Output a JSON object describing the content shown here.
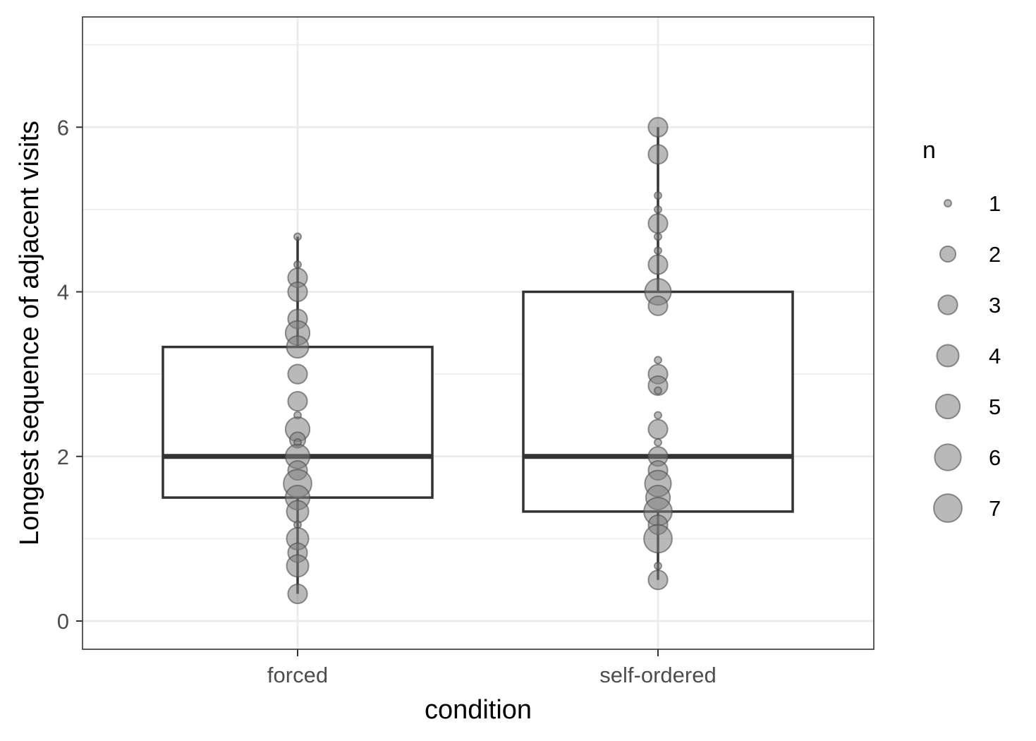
{
  "chart_data": {
    "type": "box",
    "xlabel": "condition",
    "ylabel": "Longest sequence of adjacent visits",
    "categories": [
      "forced",
      "self-ordered"
    ],
    "ylim": [
      -0.33,
      7.33
    ],
    "yticks": [
      0,
      2,
      4,
      6
    ],
    "grid": true,
    "boxes": [
      {
        "name": "forced",
        "q1": 1.5,
        "median": 2.0,
        "q3": 3.33,
        "whisker_low": 0.33,
        "whisker_high": 4.67
      },
      {
        "name": "self-ordered",
        "q1": 1.33,
        "median": 2.0,
        "q3": 4.0,
        "whisker_low": 0.5,
        "whisker_high": 6.0
      }
    ],
    "points": [
      {
        "category": "forced",
        "points": [
          {
            "y": 4.67,
            "n": 1
          },
          {
            "y": 4.33,
            "n": 1
          },
          {
            "y": 4.17,
            "n": 3
          },
          {
            "y": 4.0,
            "n": 3
          },
          {
            "y": 3.67,
            "n": 3
          },
          {
            "y": 3.5,
            "n": 5
          },
          {
            "y": 3.33,
            "n": 4
          },
          {
            "y": 3.0,
            "n": 3
          },
          {
            "y": 2.67,
            "n": 3
          },
          {
            "y": 2.5,
            "n": 1
          },
          {
            "y": 2.33,
            "n": 5
          },
          {
            "y": 2.2,
            "n": 2
          },
          {
            "y": 2.17,
            "n": 1
          },
          {
            "y": 2.0,
            "n": 5
          },
          {
            "y": 1.83,
            "n": 3
          },
          {
            "y": 1.67,
            "n": 7
          },
          {
            "y": 1.5,
            "n": 5
          },
          {
            "y": 1.33,
            "n": 4
          },
          {
            "y": 1.17,
            "n": 1
          },
          {
            "y": 1.0,
            "n": 4
          },
          {
            "y": 0.83,
            "n": 3
          },
          {
            "y": 0.67,
            "n": 4
          },
          {
            "y": 0.33,
            "n": 3
          }
        ]
      },
      {
        "category": "self-ordered",
        "points": [
          {
            "y": 6.0,
            "n": 3
          },
          {
            "y": 5.67,
            "n": 3
          },
          {
            "y": 5.17,
            "n": 1
          },
          {
            "y": 5.0,
            "n": 1
          },
          {
            "y": 4.83,
            "n": 3
          },
          {
            "y": 4.67,
            "n": 1
          },
          {
            "y": 4.5,
            "n": 1
          },
          {
            "y": 4.33,
            "n": 3
          },
          {
            "y": 4.0,
            "n": 6
          },
          {
            "y": 3.83,
            "n": 3
          },
          {
            "y": 3.17,
            "n": 1
          },
          {
            "y": 3.0,
            "n": 3
          },
          {
            "y": 2.86,
            "n": 3
          },
          {
            "y": 2.8,
            "n": 1
          },
          {
            "y": 2.5,
            "n": 1
          },
          {
            "y": 2.33,
            "n": 3
          },
          {
            "y": 2.17,
            "n": 1
          },
          {
            "y": 2.0,
            "n": 3
          },
          {
            "y": 1.83,
            "n": 3
          },
          {
            "y": 1.67,
            "n": 6
          },
          {
            "y": 1.5,
            "n": 5
          },
          {
            "y": 1.33,
            "n": 7
          },
          {
            "y": 1.17,
            "n": 3
          },
          {
            "y": 1.0,
            "n": 7
          },
          {
            "y": 0.67,
            "n": 1
          },
          {
            "y": 0.5,
            "n": 3
          }
        ]
      }
    ],
    "point_fill": "#808080",
    "point_stroke": "#4d4d4d",
    "box_stroke": "#333333",
    "legend": {
      "title": "n",
      "placement": "right",
      "entries": [
        {
          "label": "1",
          "n": 1
        },
        {
          "label": "2",
          "n": 2
        },
        {
          "label": "3",
          "n": 3
        },
        {
          "label": "4",
          "n": 4
        },
        {
          "label": "5",
          "n": 5
        },
        {
          "label": "6",
          "n": 6
        },
        {
          "label": "7",
          "n": 7
        }
      ]
    }
  }
}
